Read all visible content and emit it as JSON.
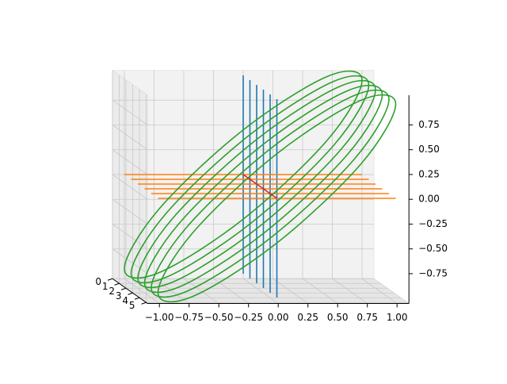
{
  "chart_data": {
    "type": "line3d",
    "xlim": [
      -1.1,
      1.1
    ],
    "ylim": [
      0,
      5.2
    ],
    "zlim": [
      -1.05,
      1.05
    ],
    "xticks": [
      {
        "value": -1,
        "label": "−1.00"
      },
      {
        "value": -0.75,
        "label": "−0.75"
      },
      {
        "value": -0.5,
        "label": "−0.50"
      },
      {
        "value": -0.25,
        "label": "−0.25"
      },
      {
        "value": 0,
        "label": "0.00"
      },
      {
        "value": 0.25,
        "label": "0.25"
      },
      {
        "value": 0.5,
        "label": "0.50"
      },
      {
        "value": 0.75,
        "label": "0.75"
      },
      {
        "value": 1,
        "label": "1.00"
      }
    ],
    "yticks": [
      0,
      1,
      2,
      3,
      4,
      5
    ],
    "zticks": [
      {
        "value": -0.75,
        "label": "−0.75"
      },
      {
        "value": -0.5,
        "label": "−0.50"
      },
      {
        "value": -0.25,
        "label": "−0.25"
      },
      {
        "value": 0,
        "label": "0.00"
      },
      {
        "value": 0.25,
        "label": "0.25"
      },
      {
        "value": 0.5,
        "label": "0.50"
      },
      {
        "value": 0.75,
        "label": "0.75"
      }
    ],
    "grid": true,
    "series": [
      {
        "color": "#1f77b4",
        "x": [
          0,
          0,
          null,
          0,
          0,
          null,
          0,
          0,
          null,
          0,
          0,
          null,
          0,
          0,
          null,
          0,
          0
        ],
        "y": [
          0,
          0,
          null,
          1,
          1,
          null,
          2,
          2,
          null,
          3,
          3,
          null,
          4,
          4,
          null,
          5,
          5
        ],
        "z": [
          -1,
          1,
          null,
          -1,
          1,
          null,
          -1,
          1,
          null,
          -1,
          1,
          null,
          -1,
          1,
          null,
          -1,
          1
        ]
      },
      {
        "color": "#ff7f0e",
        "x": [
          -1,
          1,
          null,
          -1,
          1,
          null,
          -1,
          1,
          null,
          -1,
          1,
          null,
          -1,
          1,
          null,
          -1,
          1
        ],
        "y": [
          0,
          0,
          null,
          1,
          1,
          null,
          2,
          2,
          null,
          3,
          3,
          null,
          4,
          4,
          null,
          5,
          5
        ],
        "z": [
          0,
          0,
          null,
          0,
          0,
          null,
          0,
          0,
          null,
          0,
          0,
          null,
          0,
          0,
          null,
          0,
          0
        ]
      },
      {
        "color": "#2ca02c",
        "closed": true,
        "x": [
          1,
          0.71,
          0,
          -0.71,
          -1,
          -0.71,
          0,
          0.71,
          null,
          1,
          0.71,
          0,
          -0.71,
          -1,
          -0.71,
          0,
          0.71,
          null,
          1,
          0.71,
          0,
          -0.71,
          -1,
          -0.71,
          0,
          0.71,
          null,
          1,
          0.71,
          0,
          -0.71,
          -1,
          -0.71,
          0,
          0.71,
          null,
          1,
          0.71,
          0,
          -0.71,
          -1,
          -0.71,
          0,
          0.71,
          null,
          1,
          0.71,
          0,
          -0.71,
          -1,
          -0.71,
          0,
          0.71
        ],
        "y": [
          0,
          0,
          0,
          0,
          0,
          0,
          0,
          0,
          null,
          1,
          1,
          1,
          1,
          1,
          1,
          1,
          1,
          null,
          2,
          2,
          2,
          2,
          2,
          2,
          2,
          2,
          null,
          3,
          3,
          3,
          3,
          3,
          3,
          3,
          3,
          null,
          4,
          4,
          4,
          4,
          4,
          4,
          4,
          4,
          null,
          5,
          5,
          5,
          5,
          5,
          5,
          5,
          5
        ],
        "z": [
          0.95,
          0.99,
          0.45,
          -0.35,
          -0.95,
          -0.99,
          -0.45,
          0.35,
          null,
          0.95,
          0.99,
          0.45,
          -0.35,
          -0.95,
          -0.99,
          -0.45,
          0.35,
          null,
          0.95,
          0.99,
          0.45,
          -0.35,
          -0.95,
          -0.99,
          -0.45,
          0.35,
          null,
          0.95,
          0.99,
          0.45,
          -0.35,
          -0.95,
          -0.99,
          -0.45,
          0.35,
          null,
          0.95,
          0.99,
          0.45,
          -0.35,
          -0.95,
          -0.99,
          -0.45,
          0.35,
          null,
          0.95,
          0.99,
          0.45,
          -0.35,
          -0.95,
          -0.99,
          -0.45,
          0.35
        ]
      },
      {
        "color": "#d62728",
        "x": [
          0,
          0
        ],
        "y": [
          0,
          5
        ],
        "z": [
          0,
          0
        ]
      }
    ]
  }
}
